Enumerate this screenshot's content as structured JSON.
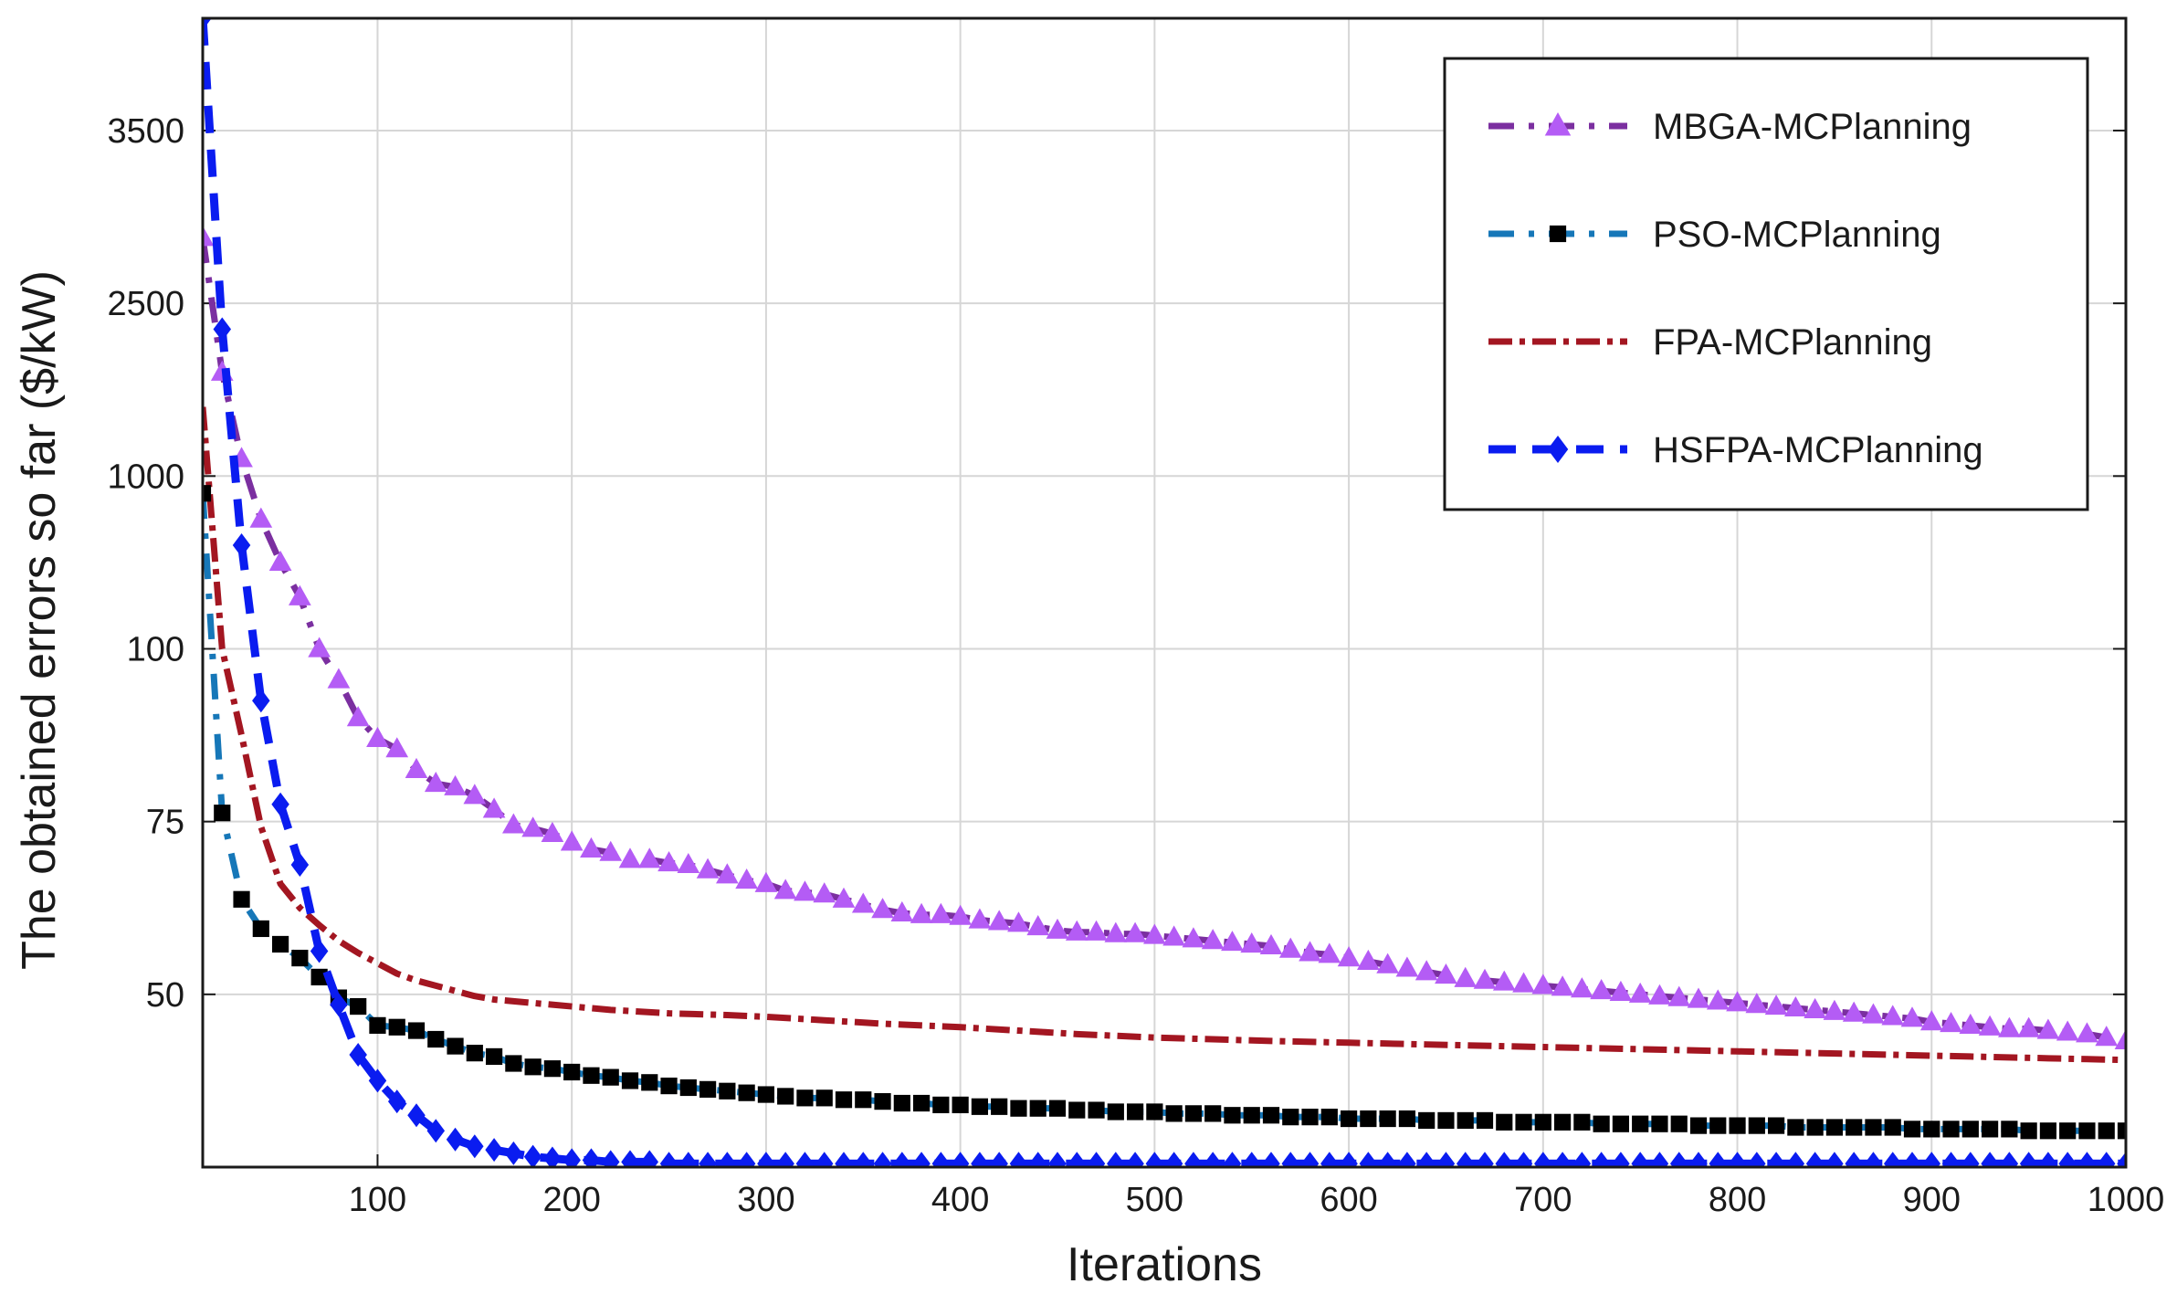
{
  "chart_data": {
    "type": "line",
    "title": "",
    "xlabel": "Iterations",
    "ylabel": "The obtained errors so far ($/kW)",
    "xlim": [
      10,
      1000
    ],
    "x_ticks": [
      100,
      200,
      300,
      400,
      500,
      600,
      700,
      800,
      900,
      1000
    ],
    "y_tick_labels": [
      "50",
      "75",
      "100",
      "1000",
      "2500",
      "3500"
    ],
    "y_scale_note": "piecewise axis; values are given in tick-index units (0=bottom, 1=50, 2=75, 3=100, 4=1000, 5=2500, 6=3500)",
    "ylim_index": [
      0,
      6.65
    ],
    "grid": true,
    "legend_position": "top-right",
    "series": [
      {
        "name": "MBGA-MCPlanning",
        "line_color": "#7B2FA0",
        "marker_color": "#B45CF5",
        "marker": "triangle",
        "dash": "28,16,6,16",
        "x": [
          10,
          20,
          30,
          40,
          50,
          60,
          70,
          80,
          90,
          100,
          110,
          120,
          130,
          140,
          150,
          160,
          170,
          180,
          190,
          200,
          210,
          220,
          230,
          240,
          250,
          260,
          270,
          280,
          290,
          300,
          310,
          320,
          330,
          340,
          350,
          360,
          370,
          380,
          390,
          400,
          410,
          420,
          430,
          440,
          450,
          460,
          470,
          480,
          490,
          500,
          510,
          520,
          530,
          540,
          550,
          560,
          570,
          580,
          590,
          600,
          610,
          620,
          630,
          640,
          650,
          660,
          670,
          680,
          690,
          700,
          710,
          720,
          730,
          740,
          750,
          760,
          770,
          780,
          790,
          800,
          810,
          820,
          830,
          840,
          850,
          860,
          870,
          880,
          890,
          900,
          910,
          920,
          930,
          940,
          950,
          960,
          970,
          980,
          990,
          1000
        ],
        "y": [
          5.38,
          4.6,
          4.1,
          3.75,
          3.5,
          3.3,
          3.0,
          2.82,
          2.6,
          2.48,
          2.42,
          2.3,
          2.22,
          2.2,
          2.15,
          2.07,
          1.98,
          1.96,
          1.93,
          1.88,
          1.84,
          1.82,
          1.78,
          1.78,
          1.76,
          1.75,
          1.72,
          1.69,
          1.66,
          1.64,
          1.6,
          1.59,
          1.58,
          1.55,
          1.52,
          1.49,
          1.47,
          1.46,
          1.46,
          1.45,
          1.43,
          1.42,
          1.41,
          1.39,
          1.37,
          1.36,
          1.36,
          1.35,
          1.35,
          1.34,
          1.33,
          1.32,
          1.31,
          1.3,
          1.29,
          1.28,
          1.26,
          1.24,
          1.23,
          1.21,
          1.19,
          1.17,
          1.15,
          1.13,
          1.11,
          1.09,
          1.08,
          1.07,
          1.06,
          1.05,
          1.04,
          1.03,
          1.02,
          1.01,
          1.0,
          0.99,
          0.98,
          0.97,
          0.96,
          0.95,
          0.94,
          0.93,
          0.92,
          0.91,
          0.9,
          0.89,
          0.88,
          0.87,
          0.86,
          0.84,
          0.83,
          0.82,
          0.81,
          0.8,
          0.8,
          0.79,
          0.78,
          0.77,
          0.75,
          0.73
        ]
      },
      {
        "name": "PSO-MCPlanning",
        "line_color": "#1677B8",
        "marker_color": "#000000",
        "marker": "square",
        "dash": "28,16,6,16",
        "x": [
          10,
          20,
          30,
          40,
          50,
          60,
          70,
          80,
          90,
          100,
          110,
          120,
          130,
          140,
          150,
          160,
          170,
          180,
          190,
          200,
          210,
          220,
          230,
          240,
          250,
          260,
          270,
          280,
          290,
          300,
          310,
          320,
          330,
          340,
          350,
          360,
          370,
          380,
          390,
          400,
          410,
          420,
          430,
          440,
          450,
          460,
          470,
          480,
          490,
          500,
          510,
          520,
          530,
          540,
          550,
          560,
          570,
          580,
          590,
          600,
          610,
          620,
          630,
          640,
          650,
          660,
          670,
          680,
          690,
          700,
          710,
          720,
          730,
          740,
          750,
          760,
          770,
          780,
          790,
          800,
          810,
          820,
          830,
          840,
          850,
          860,
          870,
          880,
          890,
          900,
          910,
          920,
          930,
          940,
          950,
          960,
          970,
          980,
          990,
          1000
        ],
        "y": [
          3.9,
          2.05,
          1.55,
          1.38,
          1.29,
          1.21,
          1.1,
          0.98,
          0.93,
          0.82,
          0.81,
          0.79,
          0.74,
          0.7,
          0.66,
          0.64,
          0.6,
          0.58,
          0.57,
          0.55,
          0.53,
          0.52,
          0.5,
          0.49,
          0.47,
          0.46,
          0.45,
          0.44,
          0.43,
          0.42,
          0.41,
          0.4,
          0.4,
          0.39,
          0.39,
          0.38,
          0.37,
          0.37,
          0.36,
          0.36,
          0.35,
          0.35,
          0.34,
          0.34,
          0.34,
          0.33,
          0.33,
          0.32,
          0.32,
          0.32,
          0.31,
          0.31,
          0.31,
          0.3,
          0.3,
          0.3,
          0.29,
          0.29,
          0.29,
          0.28,
          0.28,
          0.28,
          0.28,
          0.27,
          0.27,
          0.27,
          0.27,
          0.26,
          0.26,
          0.26,
          0.26,
          0.26,
          0.25,
          0.25,
          0.25,
          0.25,
          0.25,
          0.24,
          0.24,
          0.24,
          0.24,
          0.24,
          0.23,
          0.23,
          0.23,
          0.23,
          0.23,
          0.23,
          0.22,
          0.22,
          0.22,
          0.22,
          0.22,
          0.22,
          0.21,
          0.21,
          0.21,
          0.21,
          0.21,
          0.21
        ]
      },
      {
        "name": "FPA-MCPlanning",
        "line_color": "#A31621",
        "marker_color": "#A31621",
        "marker": "none",
        "dash": "26,8,6,8",
        "x": [
          10,
          20,
          30,
          40,
          50,
          60,
          70,
          80,
          90,
          100,
          110,
          120,
          130,
          140,
          150,
          160,
          180,
          200,
          220,
          250,
          280,
          300,
          330,
          360,
          400,
          430,
          460,
          500,
          530,
          560,
          600,
          640,
          680,
          720,
          760,
          800,
          840,
          880,
          920,
          960,
          1000
        ],
        "y": [
          4.4,
          3.0,
          2.5,
          1.97,
          1.64,
          1.5,
          1.4,
          1.31,
          1.24,
          1.18,
          1.12,
          1.08,
          1.05,
          1.02,
          0.99,
          0.97,
          0.95,
          0.93,
          0.91,
          0.89,
          0.88,
          0.87,
          0.85,
          0.83,
          0.81,
          0.79,
          0.77,
          0.75,
          0.74,
          0.73,
          0.72,
          0.71,
          0.7,
          0.69,
          0.68,
          0.67,
          0.66,
          0.65,
          0.64,
          0.63,
          0.62
        ]
      },
      {
        "name": "HSFPA-MCPlanning",
        "line_color": "#0A1CF0",
        "marker_color": "#0A1CF0",
        "marker": "diamond",
        "dash": "30,18",
        "x": [
          10,
          20,
          30,
          40,
          50,
          60,
          70,
          80,
          90,
          100,
          110,
          120,
          130,
          140,
          150,
          160,
          170,
          180,
          190,
          200,
          210,
          220,
          230,
          240,
          250,
          260,
          270,
          280,
          290,
          300,
          310,
          320,
          330,
          340,
          350,
          360,
          370,
          380,
          390,
          400,
          410,
          420,
          430,
          440,
          450,
          460,
          470,
          480,
          490,
          500,
          510,
          520,
          530,
          540,
          550,
          560,
          570,
          580,
          590,
          600,
          610,
          620,
          630,
          640,
          650,
          660,
          670,
          680,
          690,
          700,
          710,
          720,
          730,
          740,
          750,
          760,
          770,
          780,
          790,
          800,
          810,
          820,
          830,
          840,
          850,
          860,
          870,
          880,
          890,
          900,
          910,
          920,
          930,
          940,
          950,
          960,
          970,
          980,
          990,
          1000
        ],
        "y": [
          6.65,
          4.85,
          3.6,
          2.7,
          2.1,
          1.75,
          1.25,
          0.94,
          0.65,
          0.5,
          0.38,
          0.3,
          0.21,
          0.16,
          0.12,
          0.1,
          0.08,
          0.06,
          0.05,
          0.04,
          0.04,
          0.03,
          0.03,
          0.03,
          0.02,
          0.02,
          0.02,
          0.02,
          0.02,
          0.02,
          0.02,
          0.02,
          0.02,
          0.02,
          0.02,
          0.02,
          0.02,
          0.02,
          0.02,
          0.02,
          0.02,
          0.02,
          0.02,
          0.02,
          0.02,
          0.02,
          0.02,
          0.02,
          0.02,
          0.02,
          0.02,
          0.02,
          0.02,
          0.02,
          0.02,
          0.02,
          0.02,
          0.02,
          0.02,
          0.02,
          0.02,
          0.02,
          0.02,
          0.02,
          0.02,
          0.02,
          0.02,
          0.02,
          0.02,
          0.02,
          0.02,
          0.02,
          0.02,
          0.02,
          0.02,
          0.02,
          0.02,
          0.02,
          0.02,
          0.02,
          0.02,
          0.02,
          0.02,
          0.02,
          0.02,
          0.02,
          0.02,
          0.02,
          0.02,
          0.02,
          0.02,
          0.02,
          0.02,
          0.02,
          0.02,
          0.02,
          0.02,
          0.02,
          0.02,
          0.02
        ]
      }
    ]
  }
}
